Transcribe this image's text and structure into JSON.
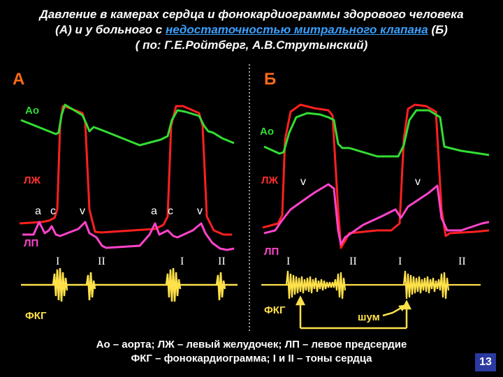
{
  "title": {
    "line1": "Давление в камерах сердца и фонокардиограммы здорового человека",
    "line2_pre": "(А) и у больного с ",
    "line2_link": "недостаточностью митрального клапана",
    "line2_post": " (Б)",
    "line3": "( по: Г.Е.Ройтберг, А.В.Струтынский)"
  },
  "panels": {
    "a": {
      "label": "А",
      "ao": "Ао",
      "lzh": "ЛЖ",
      "lp": "ЛП",
      "fkg": "ФКГ",
      "waves": [
        "а",
        "с",
        "v",
        "а",
        "с",
        "v"
      ],
      "tones": [
        "I",
        "II",
        "I",
        "II"
      ]
    },
    "b": {
      "label": "Б",
      "ao": "Ао",
      "lzh": "ЛЖ",
      "lp": "ЛП",
      "fkg": "ФКГ",
      "waves": [
        "v",
        "v"
      ],
      "tones": [
        "I",
        "II",
        "I",
        "II"
      ],
      "murmur": "шум"
    }
  },
  "legend": {
    "line1": "Ао – аорта; ЛЖ – левый желудочек; ЛП – левое предсердие",
    "line2": "ФКГ – фонокардиограмма; I и II – тоны сердца"
  },
  "page_number": "13",
  "colors": {
    "aorta": "#33dd33",
    "ventricle": "#ff2020",
    "atrium": "#ff44cc",
    "phono": "#ffe14a",
    "panel_label": "#ff6a1a"
  }
}
